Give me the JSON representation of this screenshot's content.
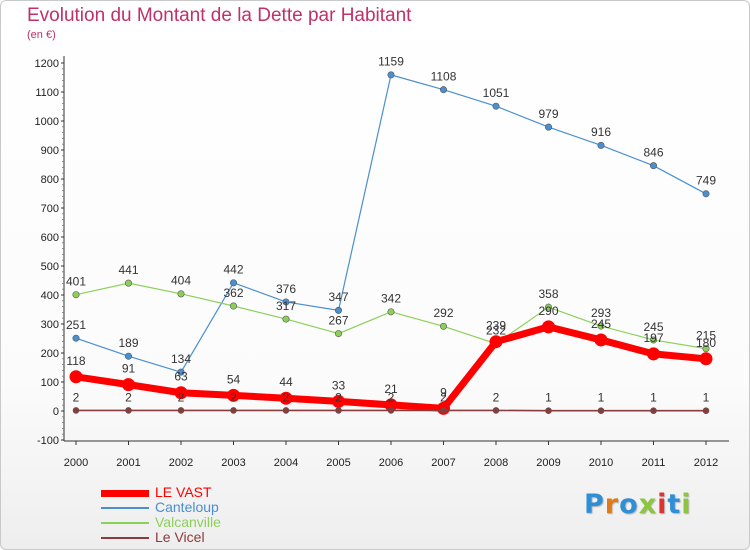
{
  "page": {
    "title": "Evolution du Montant de la Dette par Habitant",
    "unit": "(en €)",
    "brand": "Proxiti"
  },
  "colors": {
    "title": "#c0306a",
    "brand_letters": [
      "#2f8fd6",
      "#e07a16",
      "#2f8fd6",
      "#8cc63f",
      "#e03030",
      "#2f8fd6",
      "#8cc63f"
    ]
  },
  "chart_data": {
    "type": "line",
    "title": "Evolution du Montant de la Dette par Habitant",
    "ylabel": "(en €)",
    "ylim": [
      -100,
      1200
    ],
    "yticks": [
      -100,
      0,
      100,
      200,
      300,
      400,
      500,
      600,
      700,
      800,
      900,
      1000,
      1100,
      1200
    ],
    "x": [
      "2000",
      "2001",
      "2002",
      "2003",
      "2004",
      "2005",
      "2006",
      "2007",
      "2008",
      "2009",
      "2010",
      "2011",
      "2012"
    ],
    "grid": false,
    "legend_position": "bottom-left",
    "series": [
      {
        "name": "LE VAST",
        "color": "#ff0000",
        "values": [
          118,
          91,
          63,
          54,
          44,
          33,
          21,
          9,
          239,
          290,
          245,
          197,
          180
        ]
      },
      {
        "name": "Canteloup",
        "color": "#4a8fd0",
        "values": [
          251,
          189,
          134,
          442,
          376,
          347,
          1159,
          1108,
          1051,
          979,
          916,
          846,
          749
        ]
      },
      {
        "name": "Valcanville",
        "color": "#8cd05a",
        "values": [
          401,
          441,
          404,
          362,
          317,
          267,
          342,
          292,
          232,
          358,
          293,
          245,
          215
        ]
      },
      {
        "name": "Le Vicel",
        "color": "#8a3b3b",
        "values": [
          2,
          2,
          2,
          2,
          2,
          2,
          2,
          2,
          2,
          1,
          1,
          1,
          1
        ]
      }
    ]
  }
}
